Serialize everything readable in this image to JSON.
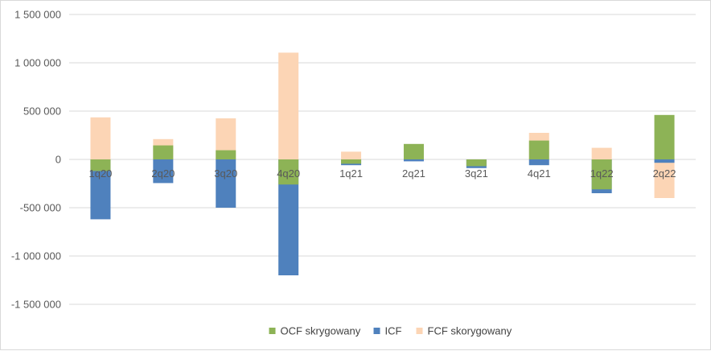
{
  "chart_data": {
    "type": "bar",
    "stacked": "overlapping",
    "categories": [
      "1q20",
      "2q20",
      "3q20",
      "4q20",
      "1q21",
      "2q21",
      "3q21",
      "4q21",
      "1q22",
      "2q22"
    ],
    "series": [
      {
        "name": "OCF skrygowany",
        "color": "#8db356",
        "values": [
          -120000,
          145000,
          95000,
          -260000,
          -45000,
          160000,
          -70000,
          195000,
          -310000,
          460000
        ]
      },
      {
        "name": "ICF",
        "color": "#4f81bd",
        "values": [
          -620000,
          -245000,
          -500000,
          -1200000,
          -60000,
          -20000,
          -90000,
          -60000,
          -350000,
          -35000
        ]
      },
      {
        "name": "FCF skorygowany",
        "color": "#fcd5b5",
        "values": [
          435000,
          210000,
          425000,
          1105000,
          80000,
          0,
          0,
          275000,
          120000,
          -400000
        ]
      }
    ],
    "draw_order": [
      "FCF skorygowany",
      "ICF",
      "OCF skrygowany"
    ],
    "yticks": [
      "1 500 000",
      "1 000 000",
      "500 000",
      "0",
      "-500 000",
      "-1 000 000",
      "-1 500 000"
    ],
    "ytick_values": [
      1500000,
      1000000,
      500000,
      0,
      -500000,
      -1000000,
      -1500000
    ],
    "ylim": [
      -1500000,
      1500000
    ],
    "grid": true,
    "legend": "bottom"
  }
}
